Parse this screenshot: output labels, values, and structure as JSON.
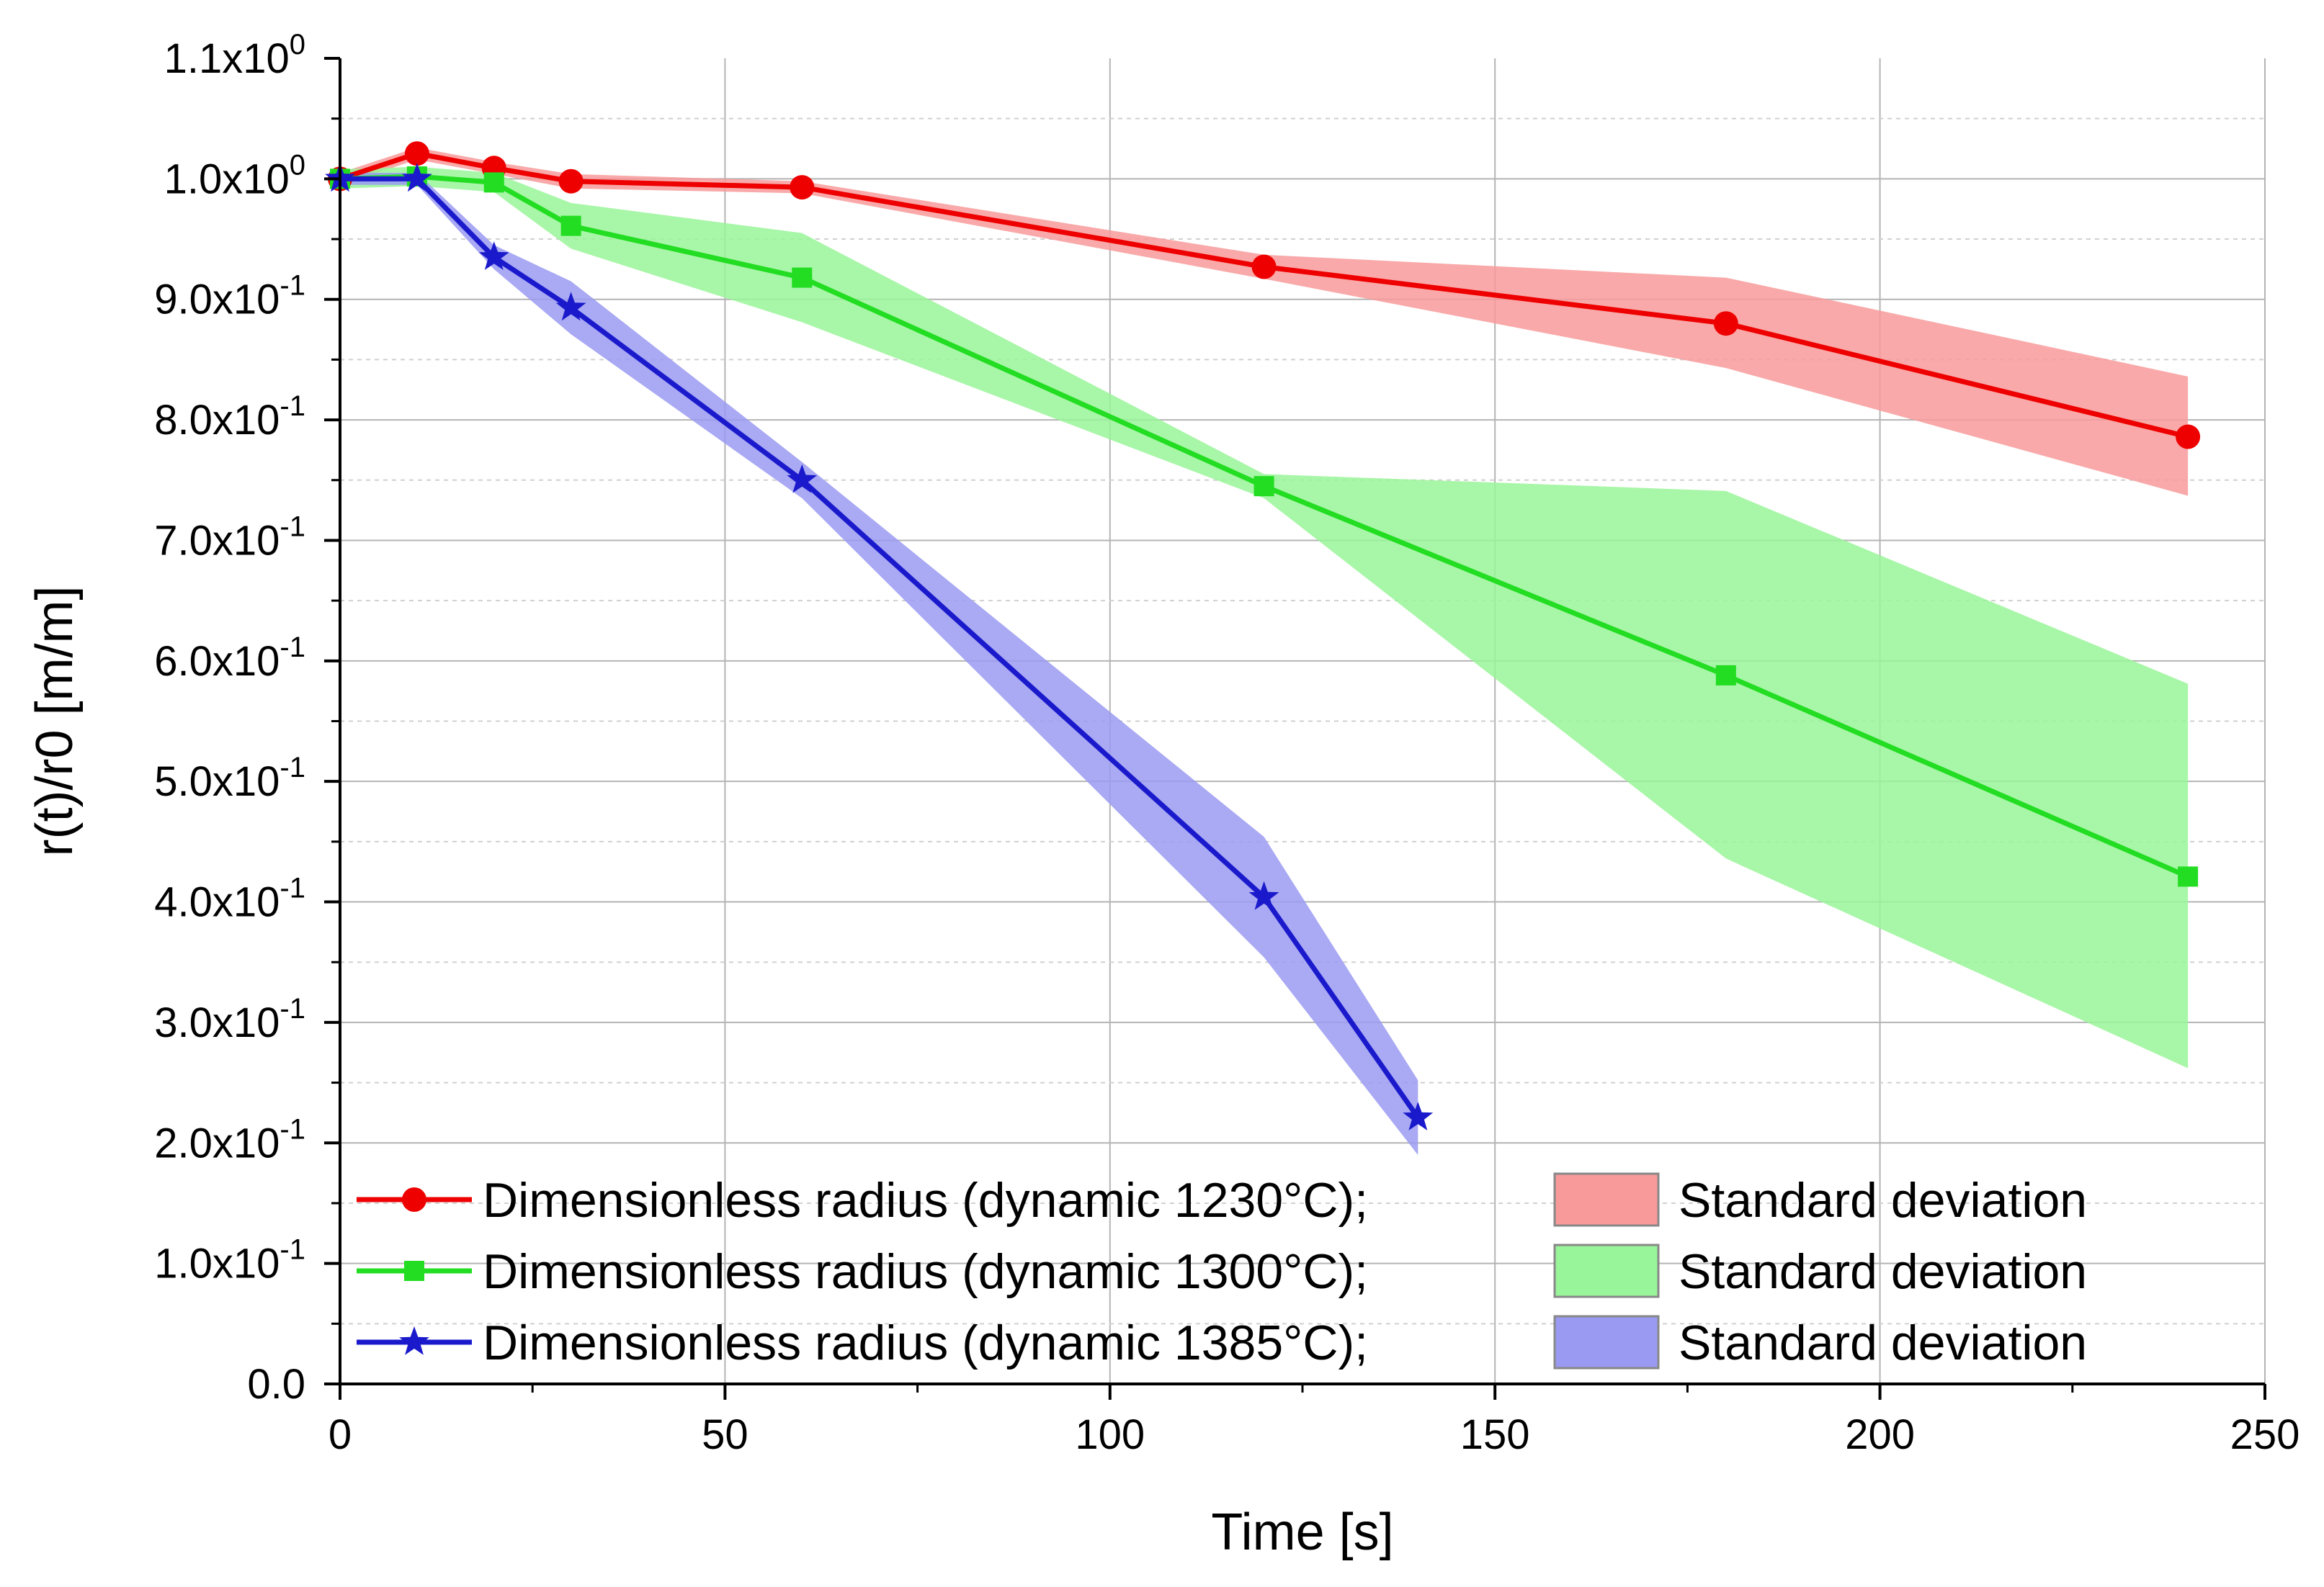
{
  "chart_data": {
    "type": "line",
    "title": "",
    "xlabel": "Time [s]",
    "ylabel": "r(t)/r0 [m/m]",
    "xlim": [
      0,
      250
    ],
    "ylim": [
      0,
      1.1
    ],
    "grid": true,
    "legend_position": "bottom-left",
    "x_ticks": [
      {
        "value": 0,
        "label": "0"
      },
      {
        "value": 50,
        "label": "50"
      },
      {
        "value": 100,
        "label": "100"
      },
      {
        "value": 150,
        "label": "150"
      },
      {
        "value": 200,
        "label": "200"
      },
      {
        "value": 250,
        "label": "250"
      }
    ],
    "y_ticks": [
      {
        "value": 0.0,
        "base": "0.0",
        "exp": ""
      },
      {
        "value": 0.1,
        "base": "1.0x10",
        "exp": "-1"
      },
      {
        "value": 0.2,
        "base": "2.0x10",
        "exp": "-1"
      },
      {
        "value": 0.3,
        "base": "3.0x10",
        "exp": "-1"
      },
      {
        "value": 0.4,
        "base": "4.0x10",
        "exp": "-1"
      },
      {
        "value": 0.5,
        "base": "5.0x10",
        "exp": "-1"
      },
      {
        "value": 0.6,
        "base": "6.0x10",
        "exp": "-1"
      },
      {
        "value": 0.7,
        "base": "7.0x10",
        "exp": "-1"
      },
      {
        "value": 0.8,
        "base": "8.0x10",
        "exp": "-1"
      },
      {
        "value": 0.9,
        "base": "9.0x10",
        "exp": "-1"
      },
      {
        "value": 1.0,
        "base": "1.0x10",
        "exp": "0"
      },
      {
        "value": 1.1,
        "base": "1.1x10",
        "exp": "0"
      }
    ],
    "series": [
      {
        "name": "Dimensionless radius (dynamic 1230°C);",
        "band_label": "Standard deviation",
        "color": "#ee0000",
        "band_color": "#f89a9a",
        "marker": "circle",
        "x": [
          0,
          10,
          20,
          30,
          60,
          120,
          180,
          240
        ],
        "values": [
          1.0,
          1.021,
          1.009,
          0.998,
          0.993,
          0.927,
          0.88,
          0.786
        ],
        "upper": [
          1.005,
          1.026,
          1.014,
          1.004,
          0.998,
          0.937,
          0.918,
          0.836
        ],
        "lower": [
          0.995,
          1.016,
          1.004,
          0.992,
          0.988,
          0.917,
          0.843,
          0.737
        ]
      },
      {
        "name": "Dimensionless radius (dynamic 1300°C);",
        "band_label": "Standard deviation",
        "color": "#22dd22",
        "band_color": "#99f599",
        "marker": "square",
        "x": [
          0,
          10,
          20,
          30,
          60,
          120,
          180,
          240
        ],
        "values": [
          1.0,
          1.002,
          0.997,
          0.961,
          0.918,
          0.745,
          0.588,
          0.421
        ],
        "upper": [
          1.008,
          1.01,
          1.005,
          0.98,
          0.955,
          0.755,
          0.741,
          0.581
        ],
        "lower": [
          0.992,
          0.994,
          0.989,
          0.942,
          0.881,
          0.735,
          0.436,
          0.262
        ]
      },
      {
        "name": "Dimensionless radius (dynamic 1385°C);",
        "band_label": "Standard deviation",
        "color": "#1a1acc",
        "band_color": "#9a9af2",
        "marker": "star",
        "x": [
          0,
          10,
          20,
          30,
          60,
          120,
          140
        ],
        "values": [
          1.0,
          1.0,
          0.935,
          0.893,
          0.75,
          0.404,
          0.221
        ],
        "upper": [
          1.005,
          1.005,
          0.945,
          0.915,
          0.765,
          0.454,
          0.252
        ],
        "lower": [
          0.995,
          0.995,
          0.925,
          0.871,
          0.735,
          0.354,
          0.19
        ]
      }
    ]
  }
}
